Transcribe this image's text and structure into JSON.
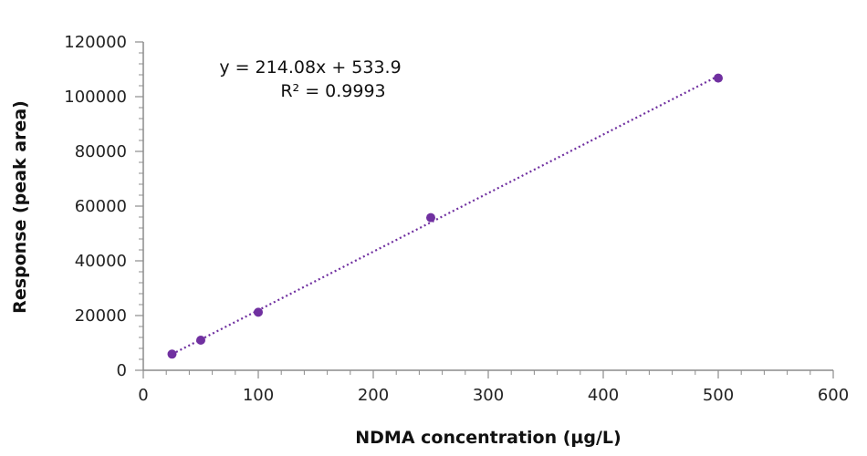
{
  "chart_data": {
    "type": "scatter",
    "xlabel": "NDMA concentration (µg/L)",
    "ylabel": "Response (peak area)",
    "xlim": [
      0,
      600
    ],
    "ylim": [
      0,
      120000
    ],
    "x_ticks": [
      "0",
      "100",
      "200",
      "300",
      "400",
      "500",
      "600"
    ],
    "y_ticks": [
      "0",
      "20000",
      "40000",
      "60000",
      "80000",
      "100000",
      "120000"
    ],
    "series": [
      {
        "x": [
          25,
          50,
          100,
          250,
          500
        ],
        "y": [
          5900,
          11000,
          21200,
          55800,
          106800
        ]
      }
    ],
    "trendline": {
      "slope": 214.08,
      "intercept": 533.9,
      "style": "dotted",
      "equation": "y = 214.08x + 533.9",
      "r_squared": "R² = 0.9993"
    },
    "marker_color": "#7030A0",
    "grid": false,
    "legend": "none"
  }
}
